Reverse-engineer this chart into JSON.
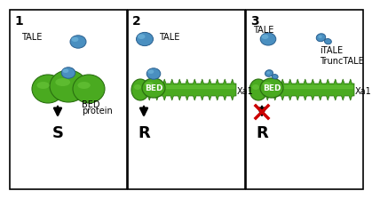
{
  "panel1": {
    "number": "1",
    "tale_label": "TALE",
    "bed_label": "BED\nprotein",
    "outcome": "S"
  },
  "panel2": {
    "number": "2",
    "tale_label": "TALE",
    "bed_label": "BED",
    "xa1_label": "Xa1",
    "outcome": "R"
  },
  "panel3": {
    "number": "3",
    "tale_label": "TALE",
    "itale_label": "iTALE\nTruncTALE",
    "bed_label": "BED",
    "xa1_label": "Xa1",
    "outcome": "R"
  },
  "background": "#ffffff",
  "border_color": "#000000",
  "tale_color_main": "#4a8fc0",
  "tale_color_light": "#6ab0d8",
  "tale_color_dark": "#2a6090",
  "green_dark": "#2a7010",
  "green_mid": "#4aaa20",
  "green_light": "#70cc40",
  "arrow_color": "#000000",
  "cross_color": "#cc0000",
  "text_color": "#000000",
  "number_fontsize": 10,
  "label_fontsize": 7,
  "outcome_fontsize": 13
}
